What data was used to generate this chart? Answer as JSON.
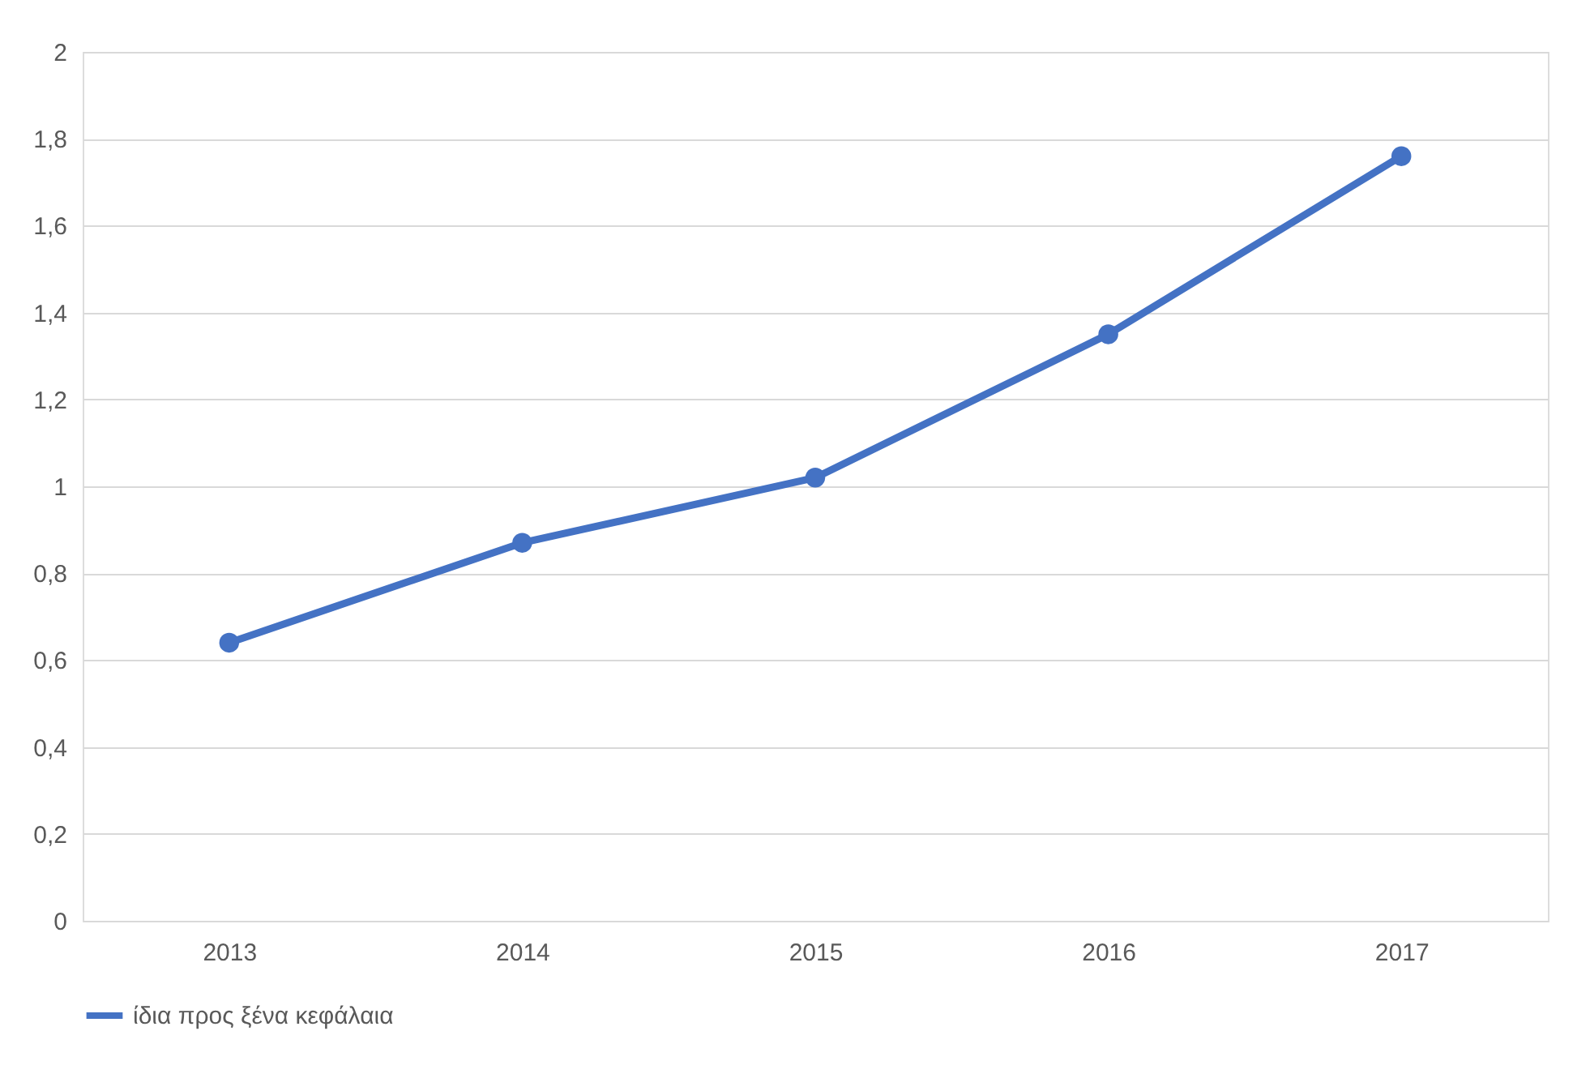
{
  "chart_data": {
    "type": "line",
    "categories": [
      "2013",
      "2014",
      "2015",
      "2016",
      "2017"
    ],
    "series": [
      {
        "name": "ίδια προς ξένα κεφάλαια",
        "color": "#4472c4",
        "values": [
          0.64,
          0.87,
          1.02,
          1.35,
          1.76
        ]
      }
    ],
    "ylim": [
      0,
      2
    ],
    "yticks": [
      0,
      {
        "value": 0.2,
        "label": "0,2"
      },
      {
        "value": 0.4,
        "label": "0,4"
      },
      {
        "value": 0.6,
        "label": "0,6"
      },
      {
        "value": 0.8,
        "label": "0,8"
      },
      1,
      {
        "value": 1.2,
        "label": "1,2"
      },
      {
        "value": 1.4,
        "label": "1,4"
      },
      {
        "value": 1.6,
        "label": "1,6"
      },
      {
        "value": 1.8,
        "label": "1,8"
      },
      2
    ],
    "grid": "y",
    "legend": "bottom",
    "marker": "circle",
    "line_style": "solid"
  }
}
